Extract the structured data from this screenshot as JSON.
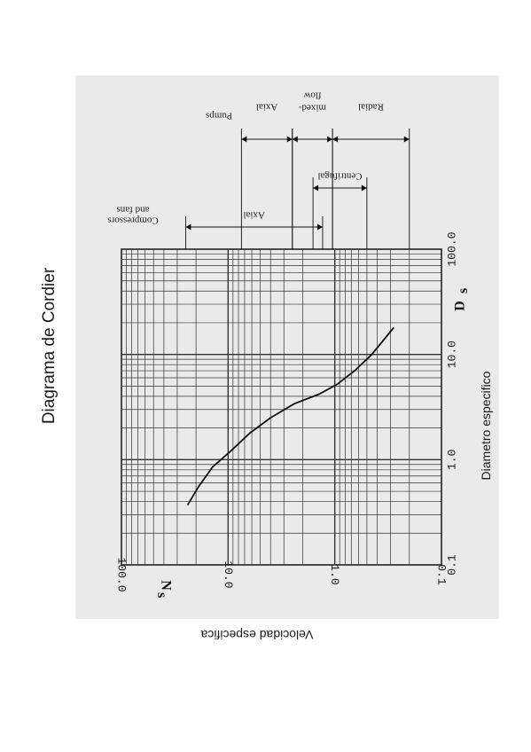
{
  "document": {
    "title": "Diagrama de Cordier",
    "x_caption": "Diametro especifico",
    "y_caption": "Velocidad especifica"
  },
  "chart_data": {
    "type": "line",
    "x_axis": {
      "symbol": "Ds",
      "scale": "log",
      "range": [
        0.1,
        100.0
      ],
      "tick_labels": [
        "0.1",
        "1.0",
        "10.0",
        "100.0"
      ]
    },
    "y_axis": {
      "symbol": "Ns",
      "scale": "log",
      "range": [
        0.1,
        100.0
      ],
      "tick_labels": [
        "0.1",
        "1.0",
        "10.0",
        "100.0"
      ]
    },
    "grid": true,
    "series": [
      {
        "points": [
          {
            "x": 0.37,
            "y": 24
          },
          {
            "x": 0.55,
            "y": 19
          },
          {
            "x": 0.85,
            "y": 14
          },
          {
            "x": 1.2,
            "y": 9.5
          },
          {
            "x": 1.8,
            "y": 6.2
          },
          {
            "x": 2.5,
            "y": 4.0
          },
          {
            "x": 3.4,
            "y": 2.4
          },
          {
            "x": 4.2,
            "y": 1.4
          },
          {
            "x": 5.2,
            "y": 0.95
          },
          {
            "x": 7.0,
            "y": 0.65
          },
          {
            "x": 10.0,
            "y": 0.45
          },
          {
            "x": 18.0,
            "y": 0.28
          }
        ]
      }
    ],
    "regions": [
      {
        "group": "Compressors and fans",
        "label": "Axial",
        "from": 25,
        "to": 1.3
      },
      {
        "group": "Compressors and fans",
        "label": "Centrifugal",
        "from": 1.6,
        "to": 0.5
      },
      {
        "group": "Pumps",
        "label": "Axial",
        "from": 7.5,
        "to": 2.5
      },
      {
        "group": "Pumps",
        "label": "mixed-flow",
        "from": 2.5,
        "to": 1.05
      },
      {
        "group": "Pumps",
        "label": "Radial",
        "from": 1.05,
        "to": 0.2
      }
    ],
    "group_labels": {
      "compressors": [
        "Compressors",
        "and fans"
      ],
      "pumps": "Pumps"
    }
  }
}
